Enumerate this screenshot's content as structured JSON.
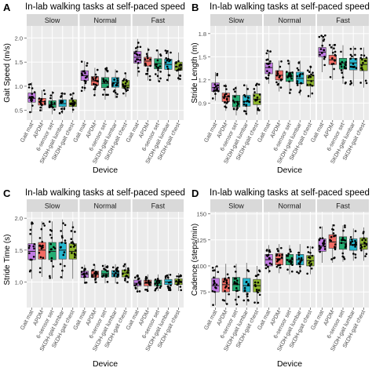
{
  "figure": {
    "series_colors": {
      "Gait mat": "#c27ae4",
      "APDM": "#f16b63",
      "6-sensor set": "#24ad72",
      "SKDH-gait lumbar": "#25b7cf",
      "SKDH-gait chest": "#8fb62c"
    }
  },
  "chart_data": [
    {
      "panel_letter": "A",
      "type": "boxplot",
      "title": "In-lab walking tasks at self-paced speed",
      "xlabel": "Device",
      "ylabel": "Gait Speed (m/s)",
      "ylim": [
        0.3,
        2.25
      ],
      "yticks": [
        0.5,
        1.0,
        1.5,
        2.0
      ],
      "ytick_labels": [
        "0.5",
        "1.0",
        "1.5",
        "2.0"
      ],
      "categories": [
        "Gait mat",
        "APDM",
        "6-sensor set",
        "SKDH-gait lumbar",
        "SKDH-gait chest"
      ],
      "facets": [
        {
          "label": "Slow",
          "boxes": [
            {
              "q1": 0.67,
              "median": 0.75,
              "q3": 0.86,
              "whislo": 0.45,
              "whishi": 1.08
            },
            {
              "q1": 0.61,
              "median": 0.68,
              "q3": 0.75,
              "whislo": 0.48,
              "whishi": 0.92
            },
            {
              "q1": 0.56,
              "median": 0.62,
              "q3": 0.7,
              "whislo": 0.42,
              "whishi": 0.9
            },
            {
              "q1": 0.58,
              "median": 0.64,
              "q3": 0.72,
              "whislo": 0.43,
              "whishi": 0.88
            },
            {
              "q1": 0.58,
              "median": 0.64,
              "q3": 0.72,
              "whislo": 0.45,
              "whishi": 0.87
            }
          ]
        },
        {
          "label": "Normal",
          "boxes": [
            {
              "q1": 1.12,
              "median": 1.22,
              "q3": 1.32,
              "whislo": 0.9,
              "whishi": 1.52
            },
            {
              "q1": 1.02,
              "median": 1.11,
              "q3": 1.2,
              "whislo": 0.8,
              "whishi": 1.38
            },
            {
              "q1": 0.97,
              "median": 1.06,
              "q3": 1.18,
              "whislo": 0.72,
              "whishi": 1.38
            },
            {
              "q1": 0.98,
              "median": 1.08,
              "q3": 1.18,
              "whislo": 0.75,
              "whishi": 1.35
            },
            {
              "q1": 0.96,
              "median": 1.02,
              "q3": 1.12,
              "whislo": 0.78,
              "whishi": 1.28
            }
          ]
        },
        {
          "label": "Fast",
          "boxes": [
            {
              "q1": 1.48,
              "median": 1.6,
              "q3": 1.72,
              "whislo": 1.2,
              "whishi": 1.98
            },
            {
              "q1": 1.42,
              "median": 1.52,
              "q3": 1.6,
              "whislo": 1.12,
              "whishi": 1.8
            },
            {
              "q1": 1.36,
              "median": 1.47,
              "q3": 1.57,
              "whislo": 1.1,
              "whishi": 1.76
            },
            {
              "q1": 1.35,
              "median": 1.45,
              "q3": 1.56,
              "whislo": 1.1,
              "whishi": 1.75
            },
            {
              "q1": 1.33,
              "median": 1.4,
              "q3": 1.5,
              "whislo": 1.12,
              "whishi": 1.7
            }
          ]
        }
      ]
    },
    {
      "panel_letter": "B",
      "type": "boxplot",
      "title": "In-lab walking tasks at self-paced speed",
      "xlabel": "Device",
      "ylabel": "Stride Length (m)",
      "ylim": [
        0.68,
        1.9
      ],
      "yticks": [
        0.9,
        1.2,
        1.5,
        1.8
      ],
      "ytick_labels": [
        "0.9",
        "1.2",
        "1.5",
        "1.8"
      ],
      "categories": [
        "Gait mat",
        "APDM",
        "6-sensor set",
        "SKDH-gait lumbar",
        "SKDH-gait chest"
      ],
      "facets": [
        {
          "label": "Slow",
          "boxes": [
            {
              "q1": 1.05,
              "median": 1.1,
              "q3": 1.16,
              "whislo": 0.93,
              "whishi": 1.3
            },
            {
              "q1": 0.92,
              "median": 0.98,
              "q3": 1.03,
              "whislo": 0.8,
              "whishi": 1.15
            },
            {
              "q1": 0.85,
              "median": 0.92,
              "q3": 1.0,
              "whislo": 0.74,
              "whishi": 1.12
            },
            {
              "q1": 0.86,
              "median": 0.92,
              "q3": 1.0,
              "whislo": 0.74,
              "whishi": 1.14
            },
            {
              "q1": 0.88,
              "median": 0.95,
              "q3": 1.02,
              "whislo": 0.75,
              "whishi": 1.15
            }
          ]
        },
        {
          "label": "Normal",
          "boxes": [
            {
              "q1": 1.28,
              "median": 1.36,
              "q3": 1.42,
              "whislo": 1.15,
              "whishi": 1.58
            },
            {
              "q1": 1.2,
              "median": 1.26,
              "q3": 1.32,
              "whislo": 1.05,
              "whishi": 1.45
            },
            {
              "q1": 1.18,
              "median": 1.25,
              "q3": 1.3,
              "whislo": 1.02,
              "whishi": 1.45
            },
            {
              "q1": 1.15,
              "median": 1.22,
              "q3": 1.3,
              "whislo": 1.0,
              "whishi": 1.45
            },
            {
              "q1": 1.12,
              "median": 1.19,
              "q3": 1.26,
              "whislo": 0.97,
              "whishi": 1.38
            }
          ]
        },
        {
          "label": "Fast",
          "boxes": [
            {
              "q1": 1.5,
              "median": 1.56,
              "q3": 1.62,
              "whislo": 1.3,
              "whishi": 1.78
            },
            {
              "q1": 1.4,
              "median": 1.46,
              "q3": 1.52,
              "whislo": 1.2,
              "whishi": 1.66
            },
            {
              "q1": 1.34,
              "median": 1.42,
              "q3": 1.48,
              "whislo": 1.15,
              "whishi": 1.65
            },
            {
              "q1": 1.33,
              "median": 1.42,
              "q3": 1.48,
              "whislo": 1.12,
              "whishi": 1.64
            },
            {
              "q1": 1.32,
              "median": 1.4,
              "q3": 1.48,
              "whislo": 1.1,
              "whishi": 1.62
            }
          ]
        }
      ]
    },
    {
      "panel_letter": "C",
      "type": "boxplot",
      "title": "In-lab walking tasks at self-paced speed",
      "xlabel": "Device",
      "ylabel": "Stride Time (s)",
      "ylim": [
        0.6,
        2.1
      ],
      "yticks": [
        1.0,
        1.5,
        2.0
      ],
      "ytick_labels": [
        "1.0",
        "1.5",
        "2.0"
      ],
      "categories": [
        "Gait mat",
        "APDM",
        "6-sensor set",
        "SKDH-gait lumbar",
        "SKDH-gait chest"
      ],
      "facets": [
        {
          "label": "Slow",
          "boxes": [
            {
              "q1": 1.35,
              "median": 1.48,
              "q3": 1.6,
              "whislo": 1.05,
              "whishi": 1.95
            },
            {
              "q1": 1.36,
              "median": 1.5,
              "q3": 1.62,
              "whislo": 1.08,
              "whishi": 1.95
            },
            {
              "q1": 1.35,
              "median": 1.48,
              "q3": 1.62,
              "whislo": 1.05,
              "whishi": 1.95
            },
            {
              "q1": 1.36,
              "median": 1.5,
              "q3": 1.62,
              "whislo": 1.05,
              "whishi": 1.98
            },
            {
              "q1": 1.36,
              "median": 1.48,
              "q3": 1.6,
              "whislo": 1.05,
              "whishi": 1.95
            }
          ]
        },
        {
          "label": "Normal",
          "boxes": [
            {
              "q1": 1.07,
              "median": 1.12,
              "q3": 1.17,
              "whislo": 0.98,
              "whishi": 1.27
            },
            {
              "q1": 1.07,
              "median": 1.12,
              "q3": 1.17,
              "whislo": 0.98,
              "whishi": 1.27
            },
            {
              "q1": 1.08,
              "median": 1.13,
              "q3": 1.18,
              "whislo": 0.98,
              "whishi": 1.28
            },
            {
              "q1": 1.08,
              "median": 1.13,
              "q3": 1.18,
              "whislo": 0.98,
              "whishi": 1.28
            },
            {
              "q1": 1.08,
              "median": 1.14,
              "q3": 1.19,
              "whislo": 0.99,
              "whishi": 1.3
            }
          ]
        },
        {
          "label": "Fast",
          "boxes": [
            {
              "q1": 0.94,
              "median": 0.98,
              "q3": 1.03,
              "whislo": 0.85,
              "whishi": 1.12
            },
            {
              "q1": 0.94,
              "median": 0.98,
              "q3": 1.03,
              "whislo": 0.85,
              "whishi": 1.12
            },
            {
              "q1": 0.94,
              "median": 0.98,
              "q3": 1.03,
              "whislo": 0.86,
              "whishi": 1.12
            },
            {
              "q1": 0.96,
              "median": 1.0,
              "q3": 1.04,
              "whislo": 0.86,
              "whishi": 1.13
            },
            {
              "q1": 0.96,
              "median": 1.0,
              "q3": 1.05,
              "whislo": 0.86,
              "whishi": 1.14
            }
          ]
        }
      ]
    },
    {
      "panel_letter": "D",
      "type": "boxplot",
      "title": "In-lab walking tasks at self-paced speed",
      "xlabel": "Device",
      "ylabel": "Cadence (steps/min)",
      "ylim": [
        60,
        152
      ],
      "yticks": [
        75,
        100,
        125,
        150
      ],
      "ytick_labels": [
        "75",
        "100",
        "125",
        "150"
      ],
      "categories": [
        "Gait mat",
        "APDM",
        "6-sensor set",
        "SKDH-gait lumbar",
        "SKDH-gait chest"
      ],
      "facets": [
        {
          "label": "Slow",
          "boxes": [
            {
              "q1": 75,
              "median": 81,
              "q3": 88,
              "whislo": 62,
              "whishi": 100
            },
            {
              "q1": 75,
              "median": 82,
              "q3": 88,
              "whislo": 63,
              "whishi": 102
            },
            {
              "q1": 76,
              "median": 82,
              "q3": 89,
              "whislo": 62,
              "whishi": 102
            },
            {
              "q1": 75,
              "median": 81,
              "q3": 88,
              "whislo": 62,
              "whishi": 103
            },
            {
              "q1": 75,
              "median": 81,
              "q3": 87,
              "whislo": 63,
              "whishi": 100
            }
          ]
        },
        {
          "label": "Normal",
          "boxes": [
            {
              "q1": 100,
              "median": 106,
              "q3": 111,
              "whislo": 93,
              "whishi": 120
            },
            {
              "q1": 101,
              "median": 107,
              "q3": 112,
              "whislo": 93,
              "whishi": 121
            },
            {
              "q1": 101,
              "median": 106,
              "q3": 111,
              "whislo": 92,
              "whishi": 120
            },
            {
              "q1": 101,
              "median": 106,
              "q3": 111,
              "whislo": 93,
              "whishi": 121
            },
            {
              "q1": 100,
              "median": 105,
              "q3": 110,
              "whislo": 92,
              "whishi": 119
            }
          ]
        },
        {
          "label": "Fast",
          "boxes": [
            {
              "q1": 114,
              "median": 119,
              "q3": 126,
              "whislo": 103,
              "whishi": 138
            },
            {
              "q1": 117,
              "median": 123,
              "q3": 130,
              "whislo": 103,
              "whishi": 140
            },
            {
              "q1": 116,
              "median": 122,
              "q3": 128,
              "whislo": 104,
              "whishi": 139
            },
            {
              "q1": 115,
              "median": 120,
              "q3": 126,
              "whislo": 105,
              "whishi": 136
            },
            {
              "q1": 116,
              "median": 121,
              "q3": 127,
              "whislo": 105,
              "whishi": 137
            }
          ]
        }
      ]
    }
  ]
}
